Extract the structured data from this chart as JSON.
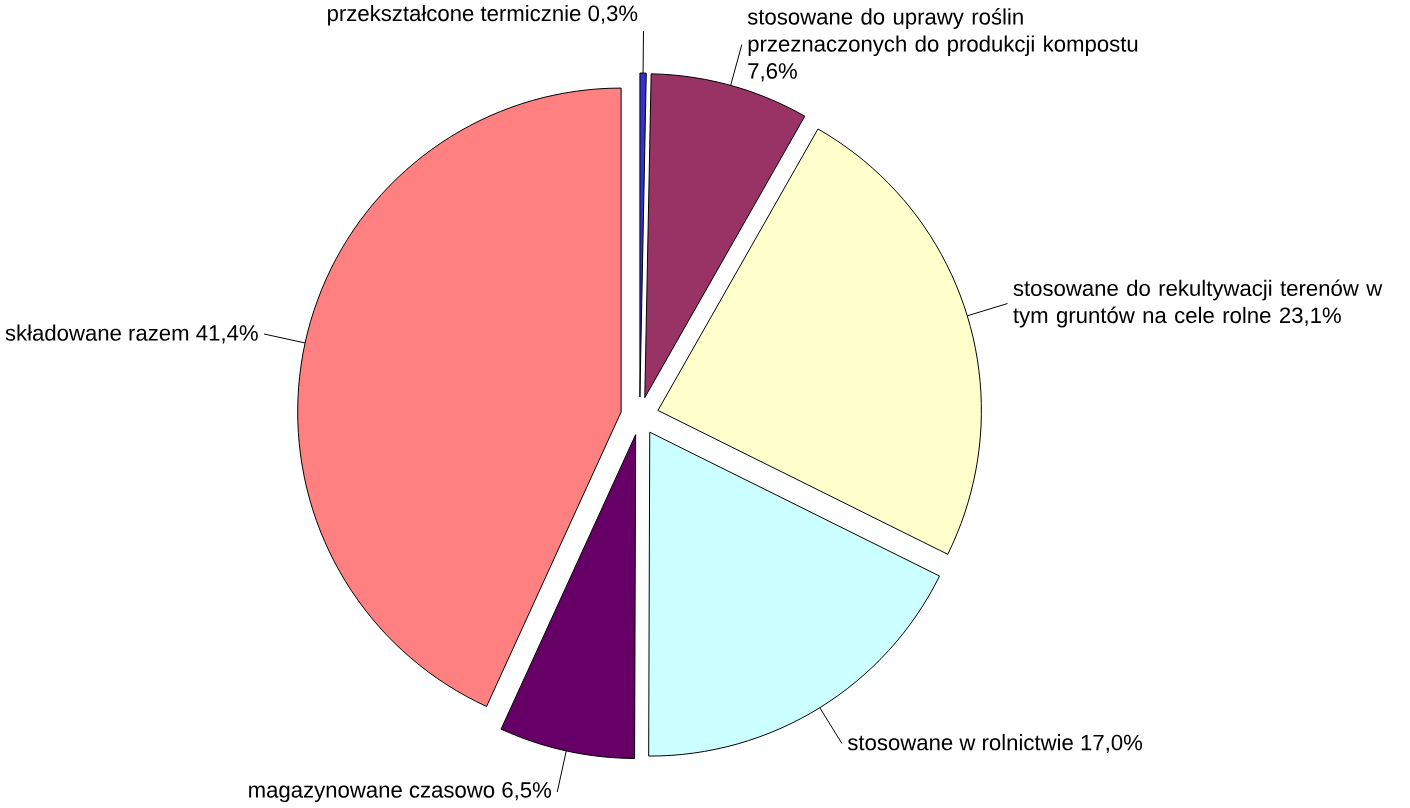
{
  "chart_data": {
    "type": "pie",
    "categories": [
      "przekształcone termicznie",
      "stosowane do uprawy roślin przeznaczonych do produkcji kompostu",
      "stosowane do rekultywacji terenów w tym gruntów na cele rolne",
      "stosowane w rolnictwie",
      "magazynowane czasowo",
      "składowane razem"
    ],
    "values": [
      0.3,
      7.6,
      23.1,
      17.0,
      6.5,
      41.4
    ],
    "value_labels": [
      "0,3%",
      "7,6%",
      "23,1%",
      "17,0%",
      "6,5%",
      "41,4%"
    ],
    "colors": [
      "#3333cc",
      "#993366",
      "#ffffcc",
      "#ccffff",
      "#660066",
      "#ff8080"
    ]
  }
}
